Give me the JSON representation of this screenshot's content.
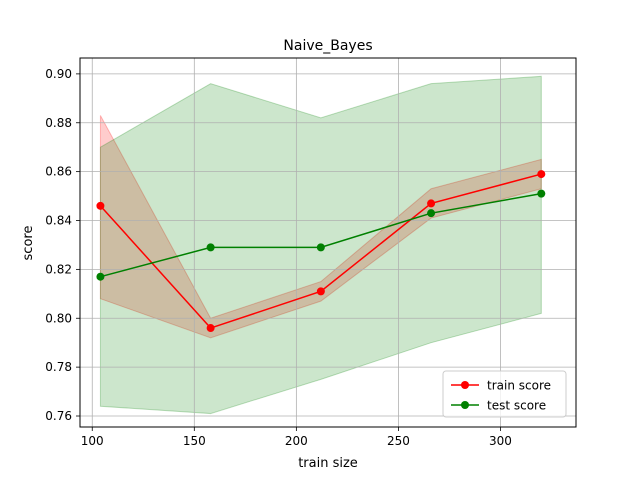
{
  "chart_data": {
    "type": "line",
    "title": "Naive_Bayes",
    "xlabel": "train size",
    "ylabel": "score",
    "xlim": [
      94,
      337
    ],
    "ylim": [
      0.7555,
      0.9065
    ],
    "xticks": [
      100,
      150,
      200,
      250,
      300
    ],
    "yticks": [
      0.76,
      0.78,
      0.8,
      0.82,
      0.84,
      0.86,
      0.88,
      0.9
    ],
    "xtick_labels": [
      "100",
      "150",
      "200",
      "250",
      "300"
    ],
    "ytick_labels": [
      "0.76",
      "0.78",
      "0.80",
      "0.82",
      "0.84",
      "0.86",
      "0.88",
      "0.90"
    ],
    "grid": true,
    "legend_position": "bottom-right",
    "x": [
      104,
      158,
      212,
      266,
      320
    ],
    "series": [
      {
        "name": "train score",
        "color": "#ff0000",
        "values": [
          0.846,
          0.796,
          0.811,
          0.847,
          0.859
        ],
        "upper": [
          0.883,
          0.8,
          0.815,
          0.853,
          0.865
        ],
        "lower": [
          0.808,
          0.792,
          0.807,
          0.841,
          0.853
        ]
      },
      {
        "name": "test score",
        "color": "#008000",
        "values": [
          0.817,
          0.829,
          0.829,
          0.843,
          0.851
        ],
        "upper": [
          0.87,
          0.896,
          0.882,
          0.896,
          0.899
        ],
        "lower": [
          0.764,
          0.761,
          0.775,
          0.79,
          0.802
        ]
      }
    ]
  }
}
